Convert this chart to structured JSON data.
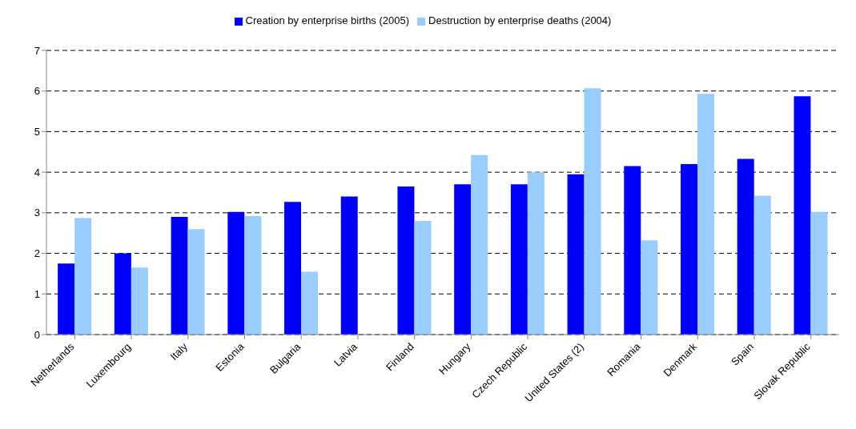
{
  "chart_data": {
    "type": "bar",
    "categories": [
      "Netherlands",
      "Luxembourg",
      "Italy",
      "Estonia",
      "Bulgaria",
      "Latvia",
      "Finland",
      "Hungary",
      "Czech Republic",
      "United States (2)",
      "Romania",
      "Denmark",
      "Spain",
      "Slovak Republic"
    ],
    "series": [
      {
        "name": "Creation by enterprise births (2005)",
        "color": "#0000ff",
        "values": [
          1.75,
          2.0,
          2.9,
          3.02,
          3.27,
          3.4,
          3.65,
          3.7,
          3.7,
          3.95,
          4.15,
          4.2,
          4.33,
          5.87
        ]
      },
      {
        "name": "Destruction by enterprise deaths (2004)",
        "color": "#99ccff",
        "values": [
          2.87,
          1.65,
          2.6,
          2.92,
          1.55,
          null,
          2.8,
          4.42,
          4.0,
          6.07,
          2.32,
          5.93,
          3.42,
          3.02
        ]
      }
    ],
    "ylim": [
      0,
      7
    ],
    "yticks": [
      0,
      1,
      2,
      3,
      4,
      5,
      6,
      7
    ],
    "grid": "y",
    "legend": "top"
  }
}
